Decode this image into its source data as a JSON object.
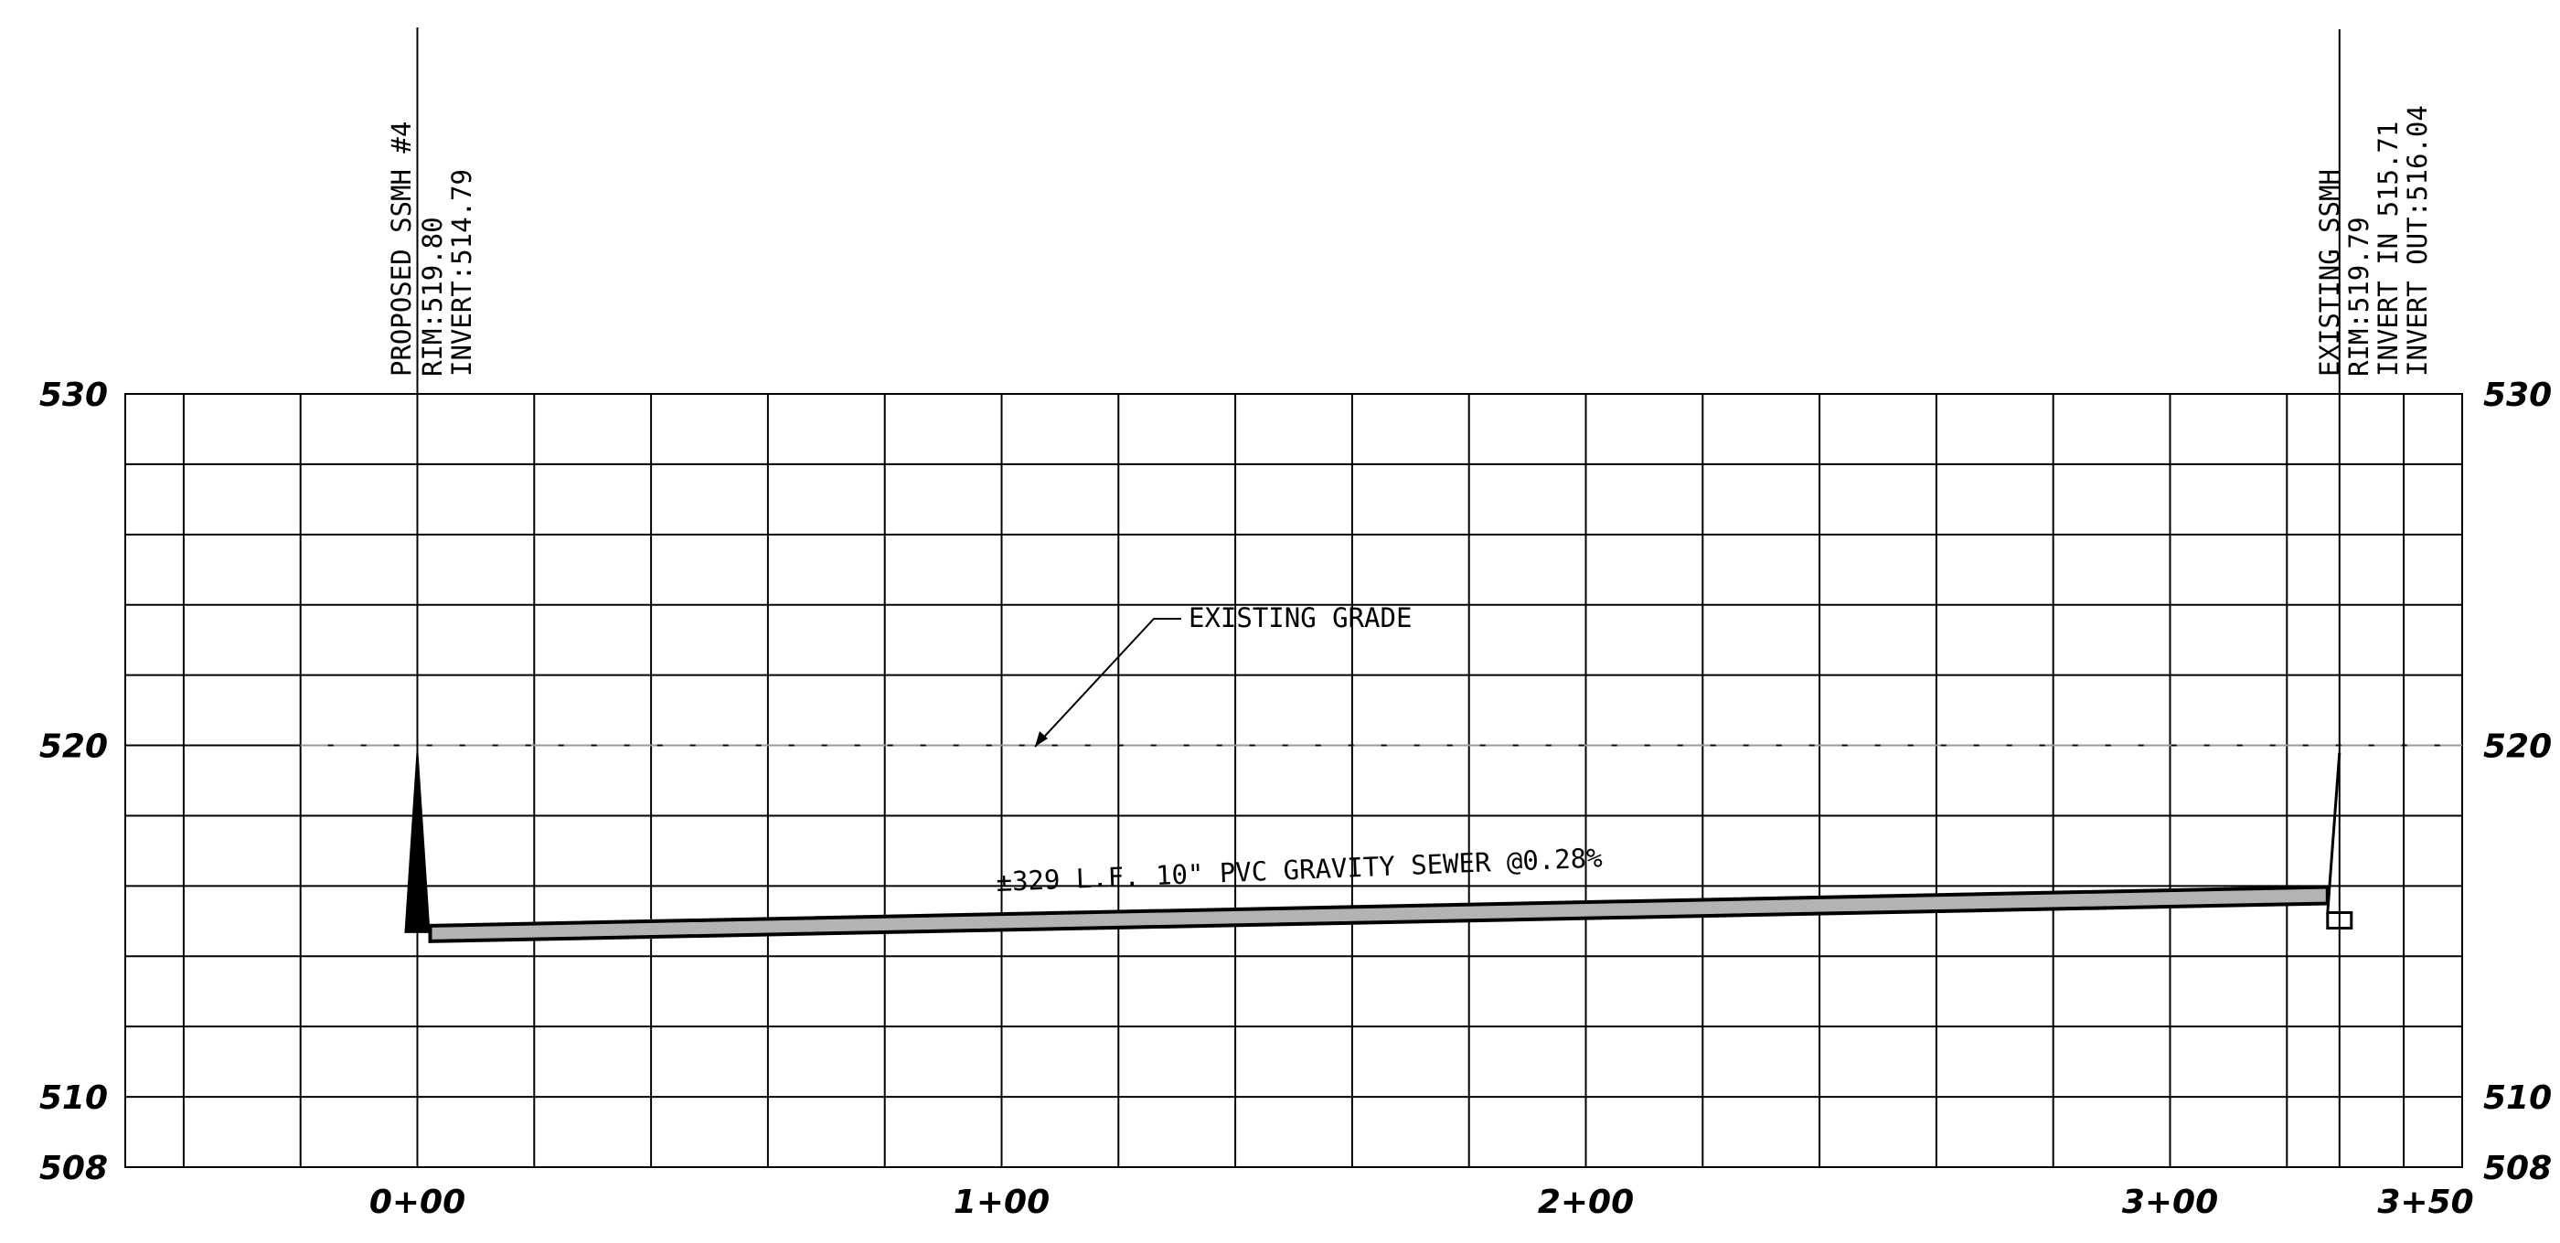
{
  "profile": {
    "elevation_range": [
      508,
      530
    ],
    "station_range_ft": [
      -50,
      350
    ],
    "elevation_labels": [
      "530",
      "520",
      "510",
      "508"
    ],
    "elevation_label_values": [
      530,
      520,
      510,
      508
    ],
    "station_labels": [
      "0+00",
      "1+00",
      "2+00",
      "3+00",
      "3+50"
    ],
    "station_label_values": [
      0,
      100,
      200,
      300,
      350
    ],
    "vertical_gridlines_ft": [
      -40,
      -20,
      0,
      20,
      40,
      60,
      80,
      100,
      120,
      140,
      160,
      180,
      200,
      220,
      240,
      260,
      280,
      300,
      320,
      340
    ],
    "horizontal_gridlines_elev": [
      508,
      510,
      512,
      514,
      516,
      518,
      520,
      522,
      524,
      526,
      528,
      530
    ]
  },
  "structures": {
    "proposed": {
      "name": "PROPOSED SSMH #4",
      "rim_text": "RIM:519.80",
      "invert_text": "INVERT:514.79",
      "station_ft": 0,
      "rim_elev": 519.8,
      "invert_elev": 514.79
    },
    "existing": {
      "name": "EXISTING SSMH",
      "rim_text": "RIM:519.79",
      "invert_in_text": "INVERT IN 515.71",
      "invert_out_text": "INVERT OUT:516.04",
      "station_ft": 329,
      "rim_elev": 519.79,
      "invert_elev": 515.71
    }
  },
  "annotations": {
    "existing_grade": "EXISTING GRADE",
    "pipe": "±329 L.F. 10\" PVC GRAVITY SEWER @0.28%"
  },
  "existing_grade": {
    "station_range_ft": [
      -20,
      350
    ],
    "elevation": 520
  },
  "colors": {
    "line": "#000000",
    "pipe_fill": "#b3b3b3",
    "background": "#ffffff"
  }
}
